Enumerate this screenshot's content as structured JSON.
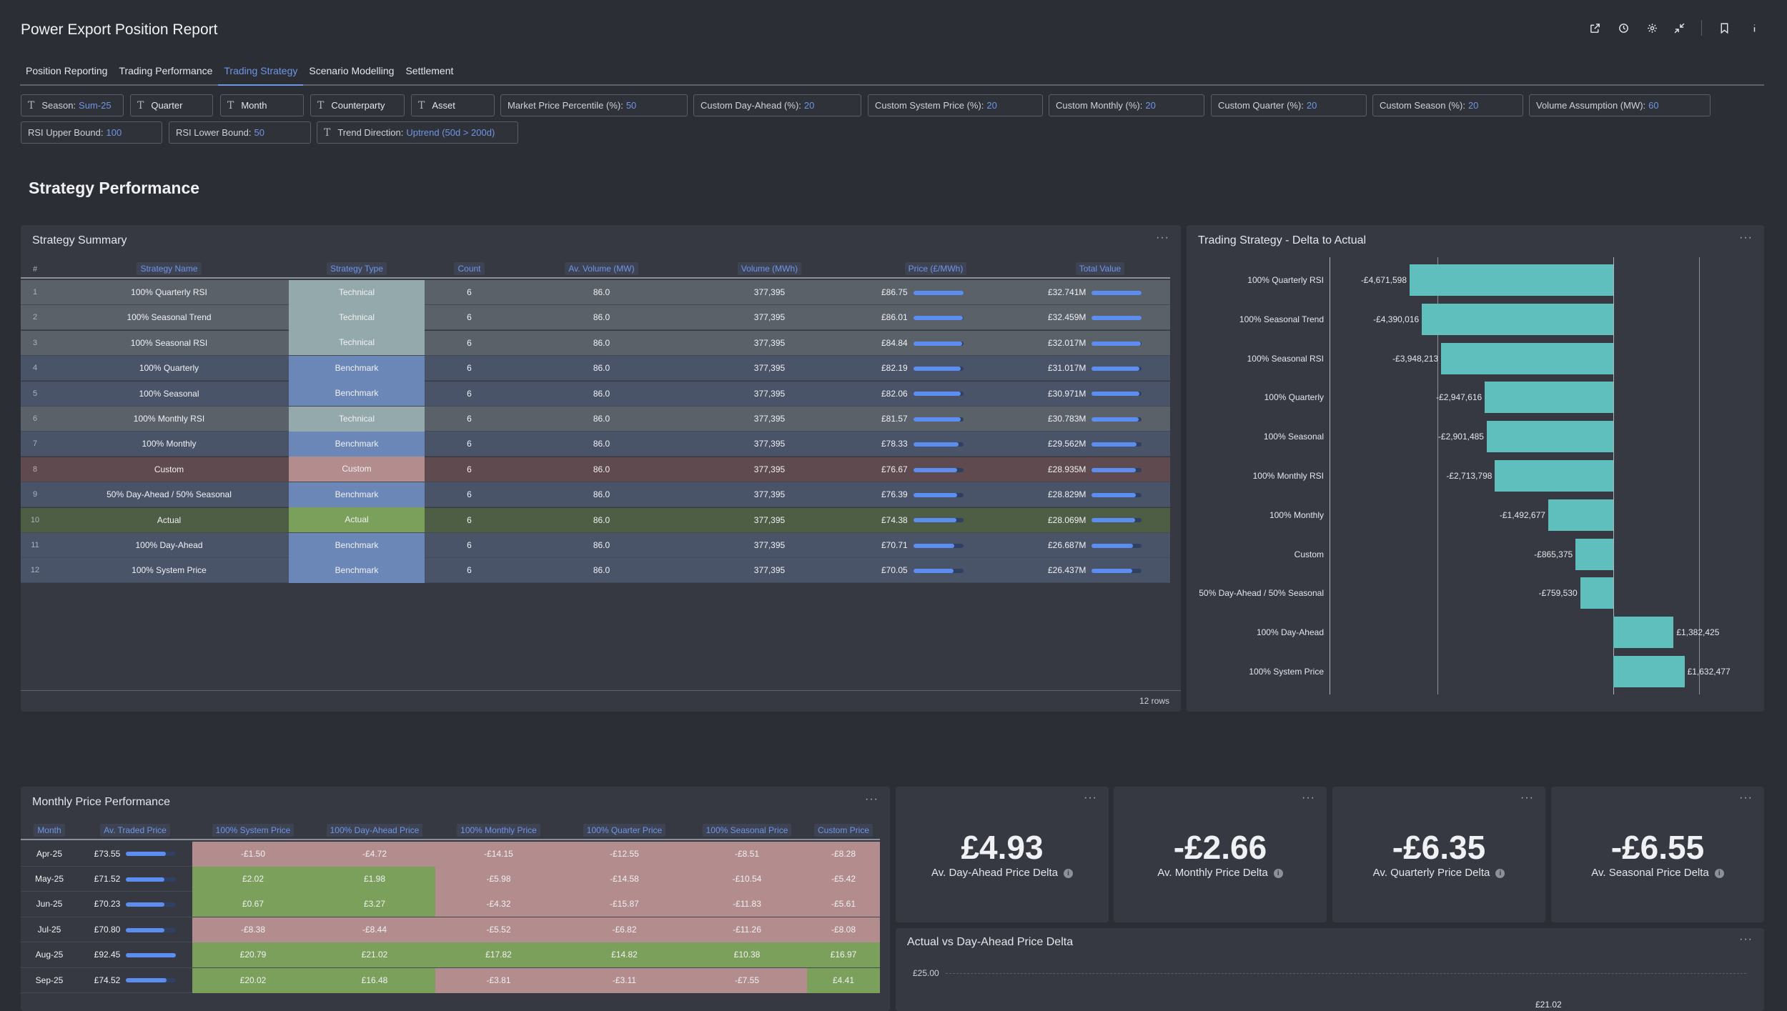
{
  "header": {
    "title": "Power Export Position Report",
    "icons": [
      "export-icon",
      "clock-icon",
      "gear-icon",
      "collapse-icon",
      "bookmark-icon",
      "info-icon"
    ]
  },
  "tabs": [
    {
      "label": "Position Reporting",
      "active": false
    },
    {
      "label": "Trading Performance",
      "active": false
    },
    {
      "label": "Trading Strategy",
      "active": true
    },
    {
      "label": "Scenario Modelling",
      "active": false
    },
    {
      "label": "Settlement",
      "active": false
    }
  ],
  "filters": {
    "season": {
      "label": "Season:",
      "value": "Sum-25"
    },
    "quarter": {
      "label": "Quarter"
    },
    "month": {
      "label": "Month"
    },
    "counterparty": {
      "label": "Counterparty"
    },
    "asset": {
      "label": "Asset"
    },
    "market_price_percentile": {
      "label": "Market Price Percentile (%):",
      "value": "50"
    },
    "custom_day_ahead": {
      "label": "Custom Day-Ahead (%):",
      "value": "20"
    },
    "custom_system_price": {
      "label": "Custom System Price (%):",
      "value": "20"
    },
    "custom_monthly": {
      "label": "Custom Monthly (%):",
      "value": "20"
    },
    "custom_quarter": {
      "label": "Custom Quarter (%):",
      "value": "20"
    },
    "custom_season": {
      "label": "Custom Season (%):",
      "value": "20"
    },
    "volume_assumption": {
      "label": "Volume Assumption (MW):",
      "value": "60"
    },
    "rsi_upper": {
      "label": "RSI Upper Bound:",
      "value": "100"
    },
    "rsi_lower": {
      "label": "RSI Lower Bound:",
      "value": "50"
    },
    "trend_direction": {
      "label": "Trend Direction:",
      "value": "Uptrend (50d > 200d)"
    }
  },
  "section_title": "Strategy Performance",
  "strategy_summary": {
    "title": "Strategy Summary",
    "menu": "···",
    "columns": [
      "#",
      "Strategy Name",
      "Strategy Type",
      "Count",
      "Av. Volume (MW)",
      "Volume (MWh)",
      "Price (£/MWh)",
      "Total Value"
    ],
    "rows": [
      {
        "n": "1",
        "name": "100% Quarterly RSI",
        "type": "Technical",
        "count": "6",
        "av_vol": "86.0",
        "vol": "377,395",
        "price": "£86.75",
        "price_pct": 1.0,
        "total": "£32.741M",
        "total_pct": 1.0
      },
      {
        "n": "2",
        "name": "100% Seasonal Trend",
        "type": "Technical",
        "count": "6",
        "av_vol": "86.0",
        "vol": "377,395",
        "price": "£86.01",
        "price_pct": 0.99,
        "total": "£32.459M",
        "total_pct": 0.99
      },
      {
        "n": "3",
        "name": "100% Seasonal RSI",
        "type": "Technical",
        "count": "6",
        "av_vol": "86.0",
        "vol": "377,395",
        "price": "£84.84",
        "price_pct": 0.98,
        "total": "£32.017M",
        "total_pct": 0.98
      },
      {
        "n": "4",
        "name": "100% Quarterly",
        "type": "Benchmark",
        "count": "6",
        "av_vol": "86.0",
        "vol": "377,395",
        "price": "£82.19",
        "price_pct": 0.95,
        "total": "£31.017M",
        "total_pct": 0.95
      },
      {
        "n": "5",
        "name": "100% Seasonal",
        "type": "Benchmark",
        "count": "6",
        "av_vol": "86.0",
        "vol": "377,395",
        "price": "£82.06",
        "price_pct": 0.95,
        "total": "£30.971M",
        "total_pct": 0.95
      },
      {
        "n": "6",
        "name": "100% Monthly RSI",
        "type": "Technical",
        "count": "6",
        "av_vol": "86.0",
        "vol": "377,395",
        "price": "£81.57",
        "price_pct": 0.94,
        "total": "£30.783M",
        "total_pct": 0.94
      },
      {
        "n": "7",
        "name": "100% Monthly",
        "type": "Benchmark",
        "count": "6",
        "av_vol": "86.0",
        "vol": "377,395",
        "price": "£78.33",
        "price_pct": 0.9,
        "total": "£29.562M",
        "total_pct": 0.9
      },
      {
        "n": "8",
        "name": "Custom",
        "type": "Custom",
        "count": "6",
        "av_vol": "86.0",
        "vol": "377,395",
        "price": "£76.67",
        "price_pct": 0.88,
        "total": "£28.935M",
        "total_pct": 0.88
      },
      {
        "n": "9",
        "name": "50% Day-Ahead / 50% Seasonal",
        "type": "Benchmark",
        "count": "6",
        "av_vol": "86.0",
        "vol": "377,395",
        "price": "£76.39",
        "price_pct": 0.88,
        "total": "£28.829M",
        "total_pct": 0.88
      },
      {
        "n": "10",
        "name": "Actual",
        "type": "Actual",
        "count": "6",
        "av_vol": "86.0",
        "vol": "377,395",
        "price": "£74.38",
        "price_pct": 0.86,
        "total": "£28.069M",
        "total_pct": 0.86
      },
      {
        "n": "11",
        "name": "100% Day-Ahead",
        "type": "Benchmark",
        "count": "6",
        "av_vol": "86.0",
        "vol": "377,395",
        "price": "£70.71",
        "price_pct": 0.82,
        "total": "£26.687M",
        "total_pct": 0.82
      },
      {
        "n": "12",
        "name": "100% System Price",
        "type": "Benchmark",
        "count": "6",
        "av_vol": "86.0",
        "vol": "377,395",
        "price": "£70.05",
        "price_pct": 0.81,
        "total": "£26.437M",
        "total_pct": 0.81
      }
    ],
    "footer": "12 rows",
    "type_colors": {
      "Technical": "#94a9ab",
      "Benchmark": "#6b87b8",
      "Custom": "#b38c8d",
      "Actual": "#7ba05b"
    },
    "row_colors": {
      "Technical": "#5a6169",
      "Benchmark": "#4a5468",
      "Custom": "#5e4a4f",
      "Actual": "#4d5e44"
    }
  },
  "delta_chart": {
    "title": "Trading Strategy - Delta to Actual",
    "menu": "···",
    "chart_data": {
      "type": "bar",
      "orientation": "horizontal",
      "categories": [
        "100% Quarterly RSI",
        "100% Seasonal Trend",
        "100% Seasonal RSI",
        "100% Quarterly",
        "100% Seasonal",
        "100% Monthly RSI",
        "100% Monthly",
        "Custom",
        "50% Day-Ahead / 50% Seasonal",
        "100% Day-Ahead",
        "100% System Price"
      ],
      "values": [
        -4671598,
        -4390016,
        -3948213,
        -2947616,
        -2901485,
        -2713798,
        -1492677,
        -865375,
        -759530,
        1382425,
        1632477
      ],
      "labels": [
        "-£4,671,598",
        "-£4,390,016",
        "-£3,948,213",
        "-£2,947,616",
        "-£2,901,485",
        "-£2,713,798",
        "-£1,492,677",
        "-£865,375",
        "-£759,530",
        "£1,382,425",
        "£1,632,477"
      ],
      "color": "#5fbfbd"
    }
  },
  "monthly": {
    "title": "Monthly Price Performance",
    "menu": "···",
    "columns": [
      "Month",
      "Av. Traded Price",
      "100% System Price",
      "100% Day-Ahead Price",
      "100% Monthly Price",
      "100% Quarter Price",
      "100% Seasonal Price",
      "Custom Price"
    ],
    "rows": [
      {
        "month": "Apr-25",
        "traded": "£73.55",
        "traded_pct": 0.8,
        "cells": [
          "-£1.50",
          "-£4.72",
          "-£14.15",
          "-£12.55",
          "-£8.51",
          "-£8.28"
        ]
      },
      {
        "month": "May-25",
        "traded": "£71.52",
        "traded_pct": 0.77,
        "cells": [
          "£2.02",
          "£1.98",
          "-£5.98",
          "-£14.58",
          "-£10.54",
          "-£5.42"
        ]
      },
      {
        "month": "Jun-25",
        "traded": "£70.23",
        "traded_pct": 0.76,
        "cells": [
          "£0.67",
          "£3.27",
          "-£4.32",
          "-£15.87",
          "-£11.83",
          "-£5.61"
        ]
      },
      {
        "month": "Jul-25",
        "traded": "£70.80",
        "traded_pct": 0.77,
        "cells": [
          "-£8.38",
          "-£8.44",
          "-£5.52",
          "-£6.82",
          "-£11.26",
          "-£8.08"
        ]
      },
      {
        "month": "Aug-25",
        "traded": "£92.45",
        "traded_pct": 1.0,
        "cells": [
          "£20.79",
          "£21.02",
          "£17.82",
          "£14.82",
          "£10.38",
          "£16.97"
        ]
      },
      {
        "month": "Sep-25",
        "traded": "£74.52",
        "traded_pct": 0.81,
        "cells": [
          "£20.02",
          "£16.48",
          "-£3.81",
          "-£3.11",
          "-£7.55",
          "£4.41"
        ]
      }
    ],
    "pos_color": "#7ba05b",
    "neg_color": "#b38c8d"
  },
  "kpis": [
    {
      "value": "£4.93",
      "label": "Av. Day-Ahead Price Delta"
    },
    {
      "value": "-£2.66",
      "label": "Av. Monthly Price Delta"
    },
    {
      "value": "-£6.35",
      "label": "Av. Quarterly Price Delta"
    },
    {
      "value": "-£6.55",
      "label": "Av. Seasonal Price Delta"
    }
  ],
  "dap_chart": {
    "title": "Actual vs Day-Ahead Price Delta",
    "menu": "···",
    "chart_data": {
      "type": "bar",
      "y_tick_labels": [
        "£25.00"
      ],
      "data_labels": [
        "£21.02"
      ]
    }
  }
}
